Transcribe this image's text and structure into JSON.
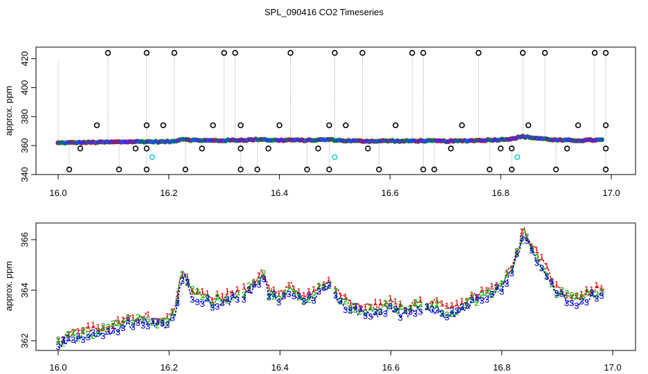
{
  "figure": {
    "title": "SPL_090416  CO2 Timeseries"
  },
  "colors": {
    "point_fill": "#1e3cff",
    "point_edge_a": "#d01010",
    "point_edge_b": "#10a010",
    "outlier": "#000000",
    "spike_line": "#aaaaaa",
    "cyan_point": "#22cccc",
    "code_1": "#dd0000",
    "code_2": "#00aa00",
    "code_3": "#0000cc"
  },
  "chart_data": [
    {
      "type": "scatter",
      "xlabel": "",
      "ylabel": "approx. ppm",
      "xlim": [
        16.0,
        17.0
      ],
      "ylim": [
        340,
        428
      ],
      "x_ticks": [
        "16.0",
        "16.2",
        "16.4",
        "16.6",
        "16.8",
        "17.0"
      ],
      "y_ticks": [
        "340",
        "360",
        "380",
        "400",
        "420"
      ],
      "baseline": [
        [
          16.0,
          361.8
        ],
        [
          16.02,
          362.0
        ],
        [
          16.04,
          362.1
        ],
        [
          16.06,
          362.2
        ],
        [
          16.08,
          362.3
        ],
        [
          16.1,
          362.4
        ],
        [
          16.12,
          362.6
        ],
        [
          16.14,
          362.7
        ],
        [
          16.16,
          362.7
        ],
        [
          16.18,
          362.6
        ],
        [
          16.2,
          362.7
        ],
        [
          16.21,
          362.9
        ],
        [
          16.22,
          364.3
        ],
        [
          16.23,
          364.5
        ],
        [
          16.24,
          363.8
        ],
        [
          16.26,
          363.6
        ],
        [
          16.28,
          363.4
        ],
        [
          16.3,
          363.5
        ],
        [
          16.32,
          363.7
        ],
        [
          16.34,
          363.8
        ],
        [
          16.36,
          364.2
        ],
        [
          16.37,
          364.5
        ],
        [
          16.38,
          363.8
        ],
        [
          16.4,
          363.6
        ],
        [
          16.42,
          363.9
        ],
        [
          16.44,
          363.6
        ],
        [
          16.46,
          363.7
        ],
        [
          16.48,
          364.0
        ],
        [
          16.49,
          364.2
        ],
        [
          16.5,
          363.8
        ],
        [
          16.52,
          363.3
        ],
        [
          16.54,
          363.2
        ],
        [
          16.56,
          363.1
        ],
        [
          16.58,
          363.1
        ],
        [
          16.6,
          363.3
        ],
        [
          16.62,
          363.0
        ],
        [
          16.64,
          363.2
        ],
        [
          16.66,
          363.3
        ],
        [
          16.68,
          363.2
        ],
        [
          16.7,
          363.0
        ],
        [
          16.72,
          363.1
        ],
        [
          16.74,
          363.4
        ],
        [
          16.76,
          363.6
        ],
        [
          16.78,
          363.8
        ],
        [
          16.8,
          364.1
        ],
        [
          16.82,
          364.8
        ],
        [
          16.84,
          366.2
        ],
        [
          16.86,
          365.3
        ],
        [
          16.88,
          364.6
        ],
        [
          16.9,
          363.8
        ],
        [
          16.92,
          363.6
        ],
        [
          16.94,
          363.5
        ],
        [
          16.96,
          363.7
        ],
        [
          16.98,
          363.9
        ]
      ],
      "outliers_high": [
        16.09,
        16.16,
        16.21,
        16.3,
        16.32,
        16.42,
        16.5,
        16.55,
        16.64,
        16.66,
        16.76,
        16.84,
        16.88,
        16.97,
        16.99
      ],
      "outliers_low": [
        16.02,
        16.11,
        16.16,
        16.23,
        16.33,
        16.36,
        16.45,
        16.49,
        16.58,
        16.66,
        16.68,
        16.78,
        16.82,
        16.9,
        16.99
      ],
      "outliers_mid_374": [
        16.07,
        16.16,
        16.19,
        16.28,
        16.33,
        16.4,
        16.49,
        16.52,
        16.61,
        16.73,
        16.85,
        16.94,
        16.99
      ],
      "outliers_mid_358": [
        16.04,
        16.14,
        16.16,
        16.26,
        16.33,
        16.38,
        16.47,
        16.56,
        16.71,
        16.8,
        16.82,
        16.92,
        16.99
      ],
      "cyan_points": [
        [
          16.17,
          352
        ],
        [
          16.5,
          352
        ],
        [
          16.83,
          352
        ]
      ]
    },
    {
      "type": "line",
      "xlabel": "",
      "ylabel": "approx. ppm",
      "xlim": [
        16.0,
        17.0
      ],
      "ylim": [
        361.4,
        366.8
      ],
      "x_ticks": [
        "16.0",
        "16.2",
        "16.4",
        "16.6",
        "16.8",
        "17.0"
      ],
      "y_ticks": [
        "362",
        "364",
        "366"
      ],
      "series": [
        {
          "name": "1",
          "offset": 0.25
        },
        {
          "name": "2",
          "offset": 0.12
        },
        {
          "name": "3",
          "offset": 0.0
        }
      ]
    }
  ]
}
